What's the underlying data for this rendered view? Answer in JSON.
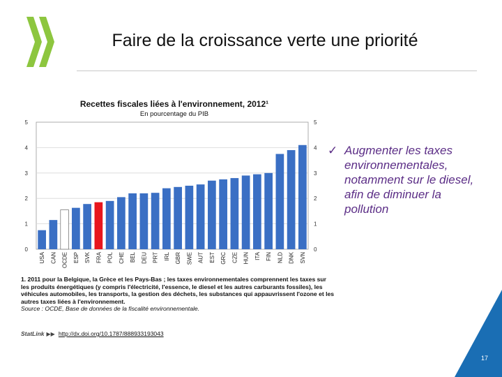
{
  "slide": {
    "title": "Faire de la croissance verte une priorité",
    "page_number": "17"
  },
  "bullet": {
    "check": "✓",
    "text": "Augmenter les taxes environnementales, notamment sur le diesel, afin de diminuer la pollution"
  },
  "colors": {
    "bar_default": "#3a6fc4",
    "bar_highlight": "#e8161d",
    "bar_oecd_fill": "#ffffff",
    "bar_oecd_stroke": "#7a7a7a",
    "logo_green": "#8dc63f",
    "corner_blue": "#1a6eb4",
    "bullet_text": "#5b2d86"
  },
  "chart_data": {
    "type": "bar",
    "title": "Recettes fiscales liées à l'environnement, 2012¹",
    "subtitle": "En pourcentage du PIB",
    "categories": [
      "USA",
      "CAN",
      "OCDE",
      "ESP",
      "SVK",
      "FRA",
      "POL",
      "CHE",
      "BEL",
      "DEU",
      "PRT",
      "IRL",
      "GBR",
      "SWE",
      "AUT",
      "EST",
      "GRC",
      "CZE",
      "HUN",
      "ITA",
      "FIN",
      "NLD",
      "DNK",
      "SVN"
    ],
    "values": [
      0.75,
      1.15,
      1.55,
      1.63,
      1.78,
      1.85,
      1.9,
      2.05,
      2.2,
      2.2,
      2.22,
      2.4,
      2.45,
      2.5,
      2.55,
      2.7,
      2.75,
      2.8,
      2.9,
      2.95,
      3.0,
      3.75,
      3.9,
      4.1
    ],
    "highlight": "FRA",
    "reference": "OCDE",
    "ylim": [
      0,
      5
    ],
    "yticks": [
      0,
      1,
      2,
      3,
      4,
      5
    ],
    "xlabel": "",
    "ylabel": "",
    "grid": true
  },
  "note": {
    "main": "1. 2011 pour la Belgique, la Grèce et les Pays-Bas ; les taxes environnementales comprennent les taxes sur les produits énergétiques (y compris l'électricité, l'essence, le diesel et les autres carburants fossiles), les véhicules automobiles, les transports, la gestion des déchets, les substances qui appauvrissent l'ozone et les autres taxes liées à l'environnement.",
    "source": "Source : OCDE, Base de données de la fiscalité environnementale."
  },
  "statlink": {
    "logo": "StatLink",
    "arrow": "▶▶",
    "url": "http://dx.doi.org/10.1787/888933193043"
  }
}
